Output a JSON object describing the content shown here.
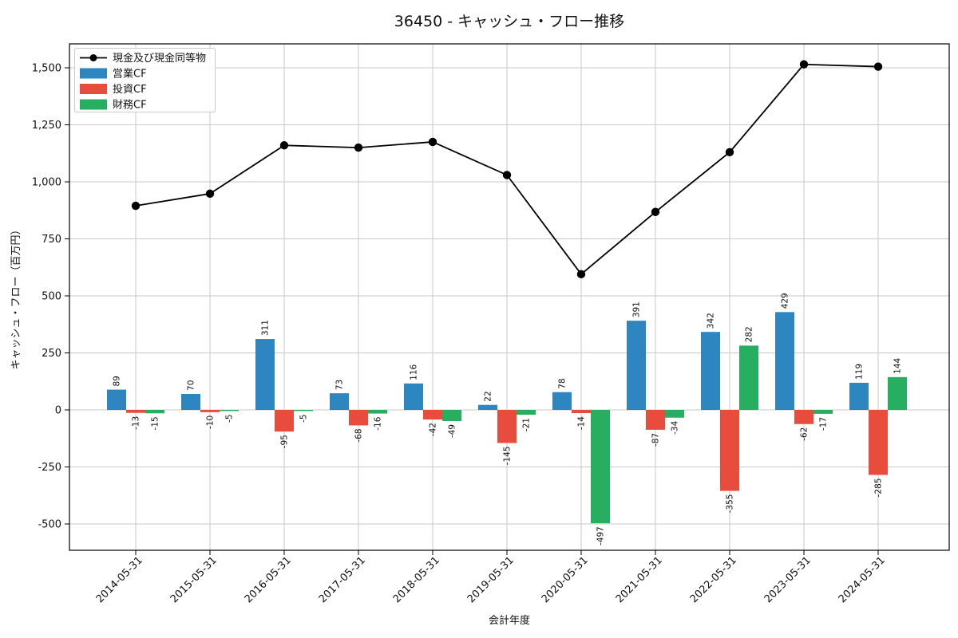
{
  "title": "36450 - キャッシュ・フロー推移",
  "chart_data": {
    "type": "bar",
    "subtype": "grouped-bars-with-line",
    "title": "36450 - キャッシュ・フロー推移",
    "xlabel": "会計年度",
    "ylabel": "キャッシュ・フロー（百万円）",
    "categories": [
      "2014-05-31",
      "2015-05-31",
      "2016-05-31",
      "2017-05-31",
      "2018-05-31",
      "2019-05-31",
      "2020-05-31",
      "2021-05-31",
      "2022-05-31",
      "2023-05-31",
      "2024-05-31"
    ],
    "series": [
      {
        "name": "営業CF",
        "key": "operating-cf",
        "type": "bar",
        "color": "#2e86c1",
        "values": [
          89,
          70,
          311,
          73,
          116,
          22,
          78,
          391,
          342,
          429,
          119
        ]
      },
      {
        "name": "投資CF",
        "key": "investing-cf",
        "type": "bar",
        "color": "#e74c3c",
        "values": [
          -13,
          -10,
          -95,
          -68,
          -42,
          -145,
          -14,
          -87,
          -355,
          -62,
          -285
        ]
      },
      {
        "name": "財務CF",
        "key": "financing-cf",
        "type": "bar",
        "color": "#27ae60",
        "values": [
          -15,
          -5,
          -5,
          -16,
          -49,
          -21,
          -497,
          -34,
          282,
          -17,
          144
        ]
      }
    ],
    "line_series": {
      "name": "現金及び現金同等物",
      "key": "cash-and-equivalents",
      "color": "#000000",
      "values": [
        895,
        948,
        1160,
        1150,
        1175,
        1030,
        595,
        868,
        1130,
        1515,
        1505
      ]
    },
    "yticks": [
      -500,
      -250,
      0,
      250,
      500,
      750,
      1000,
      1250,
      1500
    ],
    "ylim": [
      -615,
      1605
    ],
    "grid": true,
    "legend_position": "upper-left",
    "legend_order": [
      "現金及び現金同等物",
      "営業CF",
      "投資CF",
      "財務CF"
    ],
    "colors": {
      "grid": "#c9c9c9",
      "frame": "#000000",
      "label_text": "#111111"
    }
  }
}
